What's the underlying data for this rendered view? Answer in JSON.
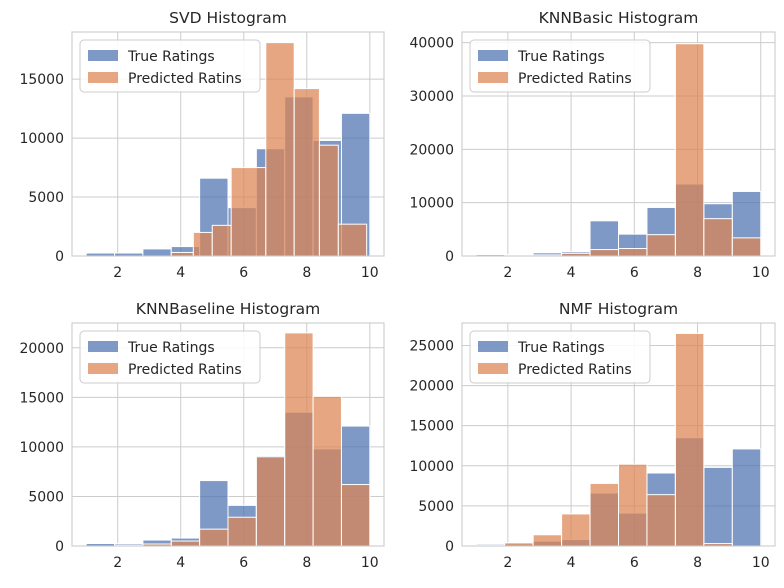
{
  "chart_data": [
    {
      "type": "bar",
      "title": "SVD Histogram",
      "xlim": [
        0.55,
        10.45
      ],
      "ylim": [
        0,
        19000
      ],
      "xticks": [
        2,
        4,
        6,
        8,
        10
      ],
      "yticks": [
        0,
        5000,
        10000,
        15000
      ],
      "bin_edges": [
        1.0,
        1.9,
        2.8,
        3.7,
        4.6,
        5.5,
        6.4,
        7.3,
        8.2,
        9.1,
        10.0
      ],
      "legend_position": "upper-left",
      "grid": true,
      "series": [
        {
          "name": "True Ratings",
          "color": "#4c72b0",
          "values": [
            250,
            250,
            600,
            800,
            6600,
            4100,
            9100,
            13500,
            9800,
            12100
          ]
        },
        {
          "name": "Predicted Ratins",
          "color": "#dd8452",
          "values": [
            0,
            0,
            0,
            300,
            2000,
            2600,
            7500,
            18100,
            14200,
            9400,
            2700
          ],
          "bin_edges": [
            1.0,
            1.9,
            2.8,
            3.7,
            4.4,
            5.0,
            5.6,
            6.7,
            7.6,
            8.4,
            9.0,
            9.9
          ]
        }
      ]
    },
    {
      "type": "bar",
      "title": "KNNBasic Histogram",
      "xlim": [
        0.55,
        10.45
      ],
      "ylim": [
        0,
        42000
      ],
      "xticks": [
        2,
        4,
        6,
        8,
        10
      ],
      "yticks": [
        0,
        10000,
        20000,
        30000,
        40000
      ],
      "bin_edges": [
        1.0,
        1.9,
        2.8,
        3.7,
        4.6,
        5.5,
        6.4,
        7.3,
        8.2,
        9.1,
        10.0
      ],
      "legend_position": "upper-left",
      "grid": true,
      "series": [
        {
          "name": "True Ratings",
          "color": "#4c72b0",
          "values": [
            250,
            250,
            600,
            800,
            6600,
            4100,
            9100,
            13500,
            9800,
            12100
          ]
        },
        {
          "name": "Predicted Ratins",
          "color": "#dd8452",
          "values": [
            0,
            100,
            200,
            500,
            1200,
            1400,
            4000,
            39800,
            7000,
            3400
          ]
        }
      ]
    },
    {
      "type": "bar",
      "title": "KNNBaseline Histogram",
      "xlim": [
        0.55,
        10.45
      ],
      "ylim": [
        0,
        22500
      ],
      "xticks": [
        2,
        4,
        6,
        8,
        10
      ],
      "yticks": [
        0,
        5000,
        10000,
        15000,
        20000
      ],
      "bin_edges": [
        1.0,
        1.9,
        2.8,
        3.7,
        4.6,
        5.5,
        6.4,
        7.3,
        8.2,
        9.1,
        10.0
      ],
      "legend_position": "upper-left",
      "grid": true,
      "series": [
        {
          "name": "True Ratings",
          "color": "#4c72b0",
          "values": [
            250,
            250,
            600,
            800,
            6600,
            4100,
            9100,
            13500,
            9800,
            12100
          ]
        },
        {
          "name": "Predicted Ratins",
          "color": "#dd8452",
          "values": [
            0,
            100,
            200,
            500,
            1700,
            2900,
            9000,
            21500,
            15100,
            6200
          ]
        }
      ]
    },
    {
      "type": "bar",
      "title": "NMF Histogram",
      "xlim": [
        0.55,
        10.45
      ],
      "ylim": [
        0,
        27800
      ],
      "xticks": [
        2,
        4,
        6,
        8,
        10
      ],
      "yticks": [
        0,
        5000,
        10000,
        15000,
        20000,
        25000
      ],
      "bin_edges": [
        1.0,
        1.9,
        2.8,
        3.7,
        4.6,
        5.5,
        6.4,
        7.3,
        8.2,
        9.1,
        10.0
      ],
      "legend_position": "upper-left",
      "grid": true,
      "series": [
        {
          "name": "True Ratings",
          "color": "#4c72b0",
          "values": [
            250,
            250,
            600,
            800,
            6600,
            4100,
            9100,
            13500,
            9800,
            12100
          ]
        },
        {
          "name": "Predicted Ratins",
          "color": "#dd8452",
          "values": [
            100,
            400,
            1400,
            4000,
            7800,
            10200,
            6400,
            26500,
            300,
            0
          ]
        }
      ]
    }
  ]
}
